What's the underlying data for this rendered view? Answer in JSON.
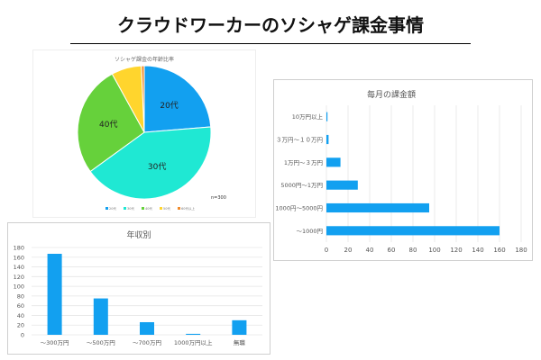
{
  "page": {
    "title": "クラウドワーカーのソシャゲ課金事情"
  },
  "colors": {
    "accent": "#12a0f0",
    "grid": "#e6e6e6"
  },
  "chart_data": [
    {
      "id": "pie",
      "type": "pie",
      "title": "ソシャゲ課金の年齢比率",
      "slices": [
        {
          "label": "20代",
          "value": 23.7,
          "color": "#12a0f0",
          "show_label": true
        },
        {
          "label": "30代",
          "value": 41.3,
          "color": "#1fe8d3",
          "show_label": true
        },
        {
          "label": "40代",
          "value": 27.0,
          "color": "#66d13b",
          "show_label": true
        },
        {
          "label": "50代",
          "value": 7.3,
          "color": "#ffd52d",
          "show_label": false
        },
        {
          "label": "60代以上",
          "value": 0.7,
          "color": "#f08b2c",
          "show_label": false
        }
      ],
      "note": "n=300",
      "legend": [
        "20代",
        "30代",
        "40代",
        "50代",
        "60代以上"
      ],
      "legend_position": "bottom"
    },
    {
      "id": "hbar",
      "type": "bar",
      "orientation": "horizontal",
      "title": "毎月の課金額",
      "categories": [
        "10万円以上",
        "３万円〜１０万円",
        "1万円〜３万円",
        "5000円〜1万円",
        "1000円〜5000円",
        "〜1000円"
      ],
      "values": [
        1,
        2,
        13,
        29,
        95,
        160
      ],
      "xlim": [
        0,
        180
      ],
      "xticks": [
        0,
        20,
        40,
        60,
        80,
        100,
        120,
        140,
        160,
        180
      ],
      "grid": true
    },
    {
      "id": "vbar",
      "type": "bar",
      "orientation": "vertical",
      "title": "年収別",
      "categories": [
        "〜300万円",
        "〜500万円",
        "〜700万円",
        "1000万円以上",
        "無職"
      ],
      "values": [
        167,
        75,
        26,
        2,
        30
      ],
      "ylim": [
        0,
        180
      ],
      "yticks": [
        0,
        20,
        40,
        60,
        80,
        100,
        120,
        140,
        160,
        180
      ],
      "grid": true
    }
  ]
}
